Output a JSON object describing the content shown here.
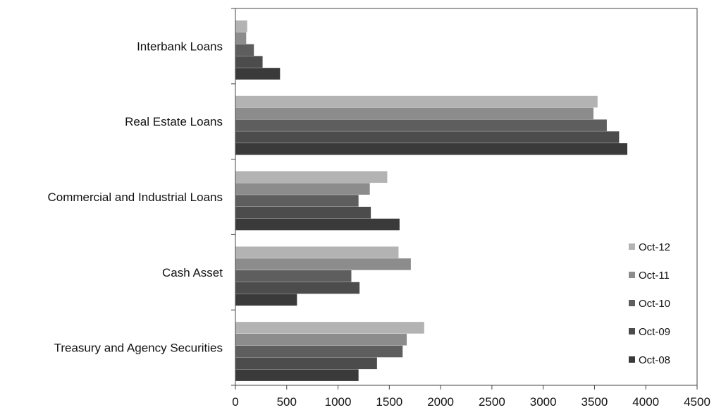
{
  "chart_data": {
    "type": "bar",
    "orientation": "horizontal",
    "categories": [
      "Interbank Loans",
      "Real Estate Loans",
      "Commercial and Industrial Loans",
      "Cash Asset",
      "Treasury and Agency Securities"
    ],
    "series": [
      {
        "name": "Oct-12",
        "color": "#b3b3b3",
        "values": [
          115,
          3530,
          1480,
          1590,
          1840
        ]
      },
      {
        "name": "Oct-11",
        "color": "#8c8c8c",
        "values": [
          105,
          3490,
          1310,
          1710,
          1670
        ]
      },
      {
        "name": "Oct-10",
        "color": "#5e5e5e",
        "values": [
          180,
          3620,
          1200,
          1130,
          1630
        ]
      },
      {
        "name": "Oct-09",
        "color": "#4c4c4c",
        "values": [
          265,
          3740,
          1320,
          1210,
          1380
        ]
      },
      {
        "name": "Oct-08",
        "color": "#3a3a3a",
        "values": [
          435,
          3820,
          1600,
          600,
          1200
        ]
      }
    ],
    "xlim": [
      0,
      4500
    ],
    "xticks": [
      "0",
      "500",
      "1000",
      "1500",
      "2000",
      "2500",
      "3000",
      "3500",
      "4000",
      "4500"
    ],
    "title": "",
    "xlabel": "",
    "ylabel": "",
    "grid": false,
    "legend_position": "right",
    "legend_order": [
      "Oct-12",
      "Oct-11",
      "Oct-10",
      "Oct-09",
      "Oct-08"
    ]
  }
}
